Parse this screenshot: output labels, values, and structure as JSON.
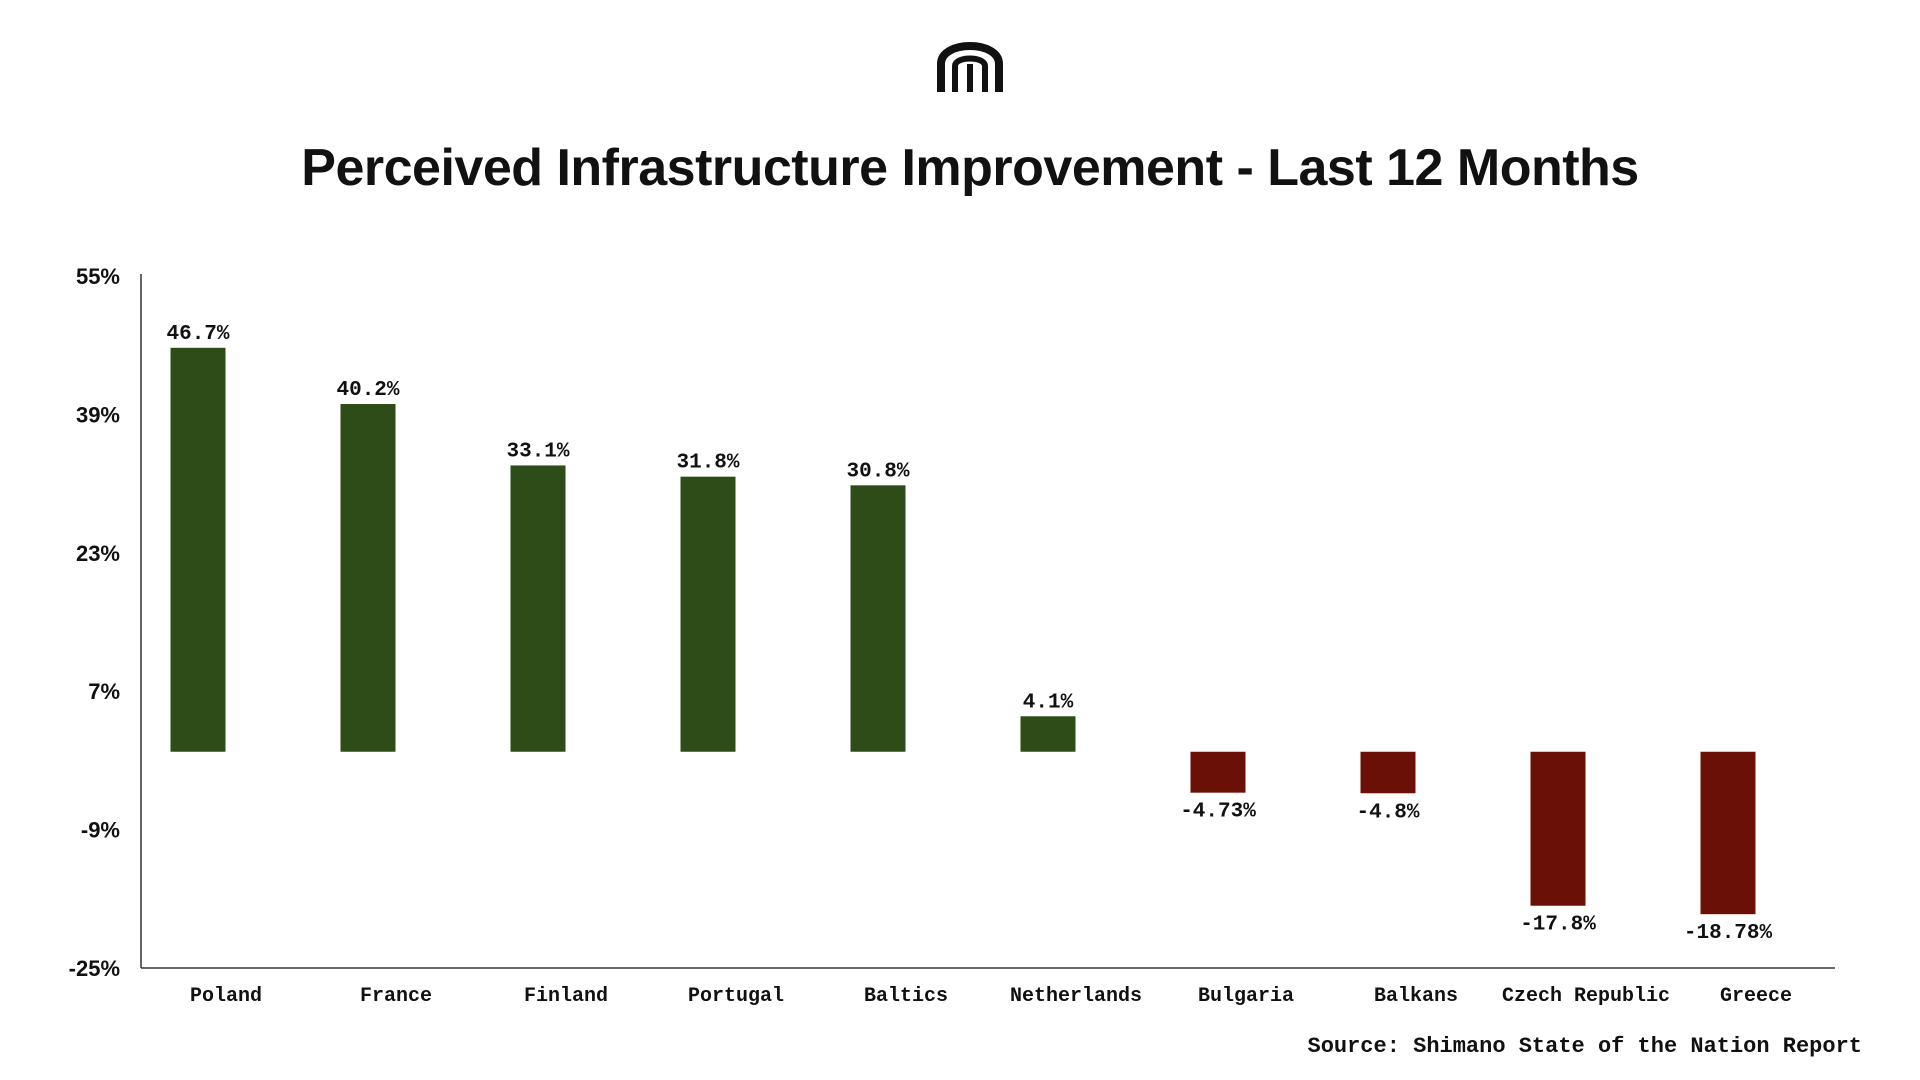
{
  "chart_data": {
    "type": "bar",
    "title": "Perceived Infrastructure Improvement - Last 12 Months",
    "categories": [
      "Poland",
      "France",
      "Finland",
      "Portugal",
      "Baltics",
      "Netherlands",
      "Bulgaria",
      "Balkans",
      "Czech Republic",
      "Greece"
    ],
    "values": [
      46.7,
      40.2,
      33.1,
      31.8,
      30.8,
      4.1,
      -4.73,
      -4.8,
      -17.8,
      -18.78
    ],
    "value_labels": [
      "46.7%",
      "40.2%",
      "33.1%",
      "31.8%",
      "30.8%",
      "4.1%",
      "-4.73%",
      "-4.8%",
      "-17.8%",
      "-18.78%"
    ],
    "yticks": [
      55,
      39,
      23,
      7,
      -9,
      -25
    ],
    "ytick_labels": [
      "55%",
      "39%",
      "23%",
      "7%",
      "-9%",
      "-25%"
    ],
    "ylim": [
      -25,
      55
    ],
    "xlabel": "",
    "ylabel": "",
    "grid": false,
    "colors": {
      "positive": "#2e4c17",
      "negative": "#6b1006",
      "axis": "#333333",
      "text": "#111111"
    }
  },
  "logo": {
    "icon": "brand-m-logo-icon",
    "color": "#111111"
  },
  "source": "Source: Shimano State of the Nation Report"
}
